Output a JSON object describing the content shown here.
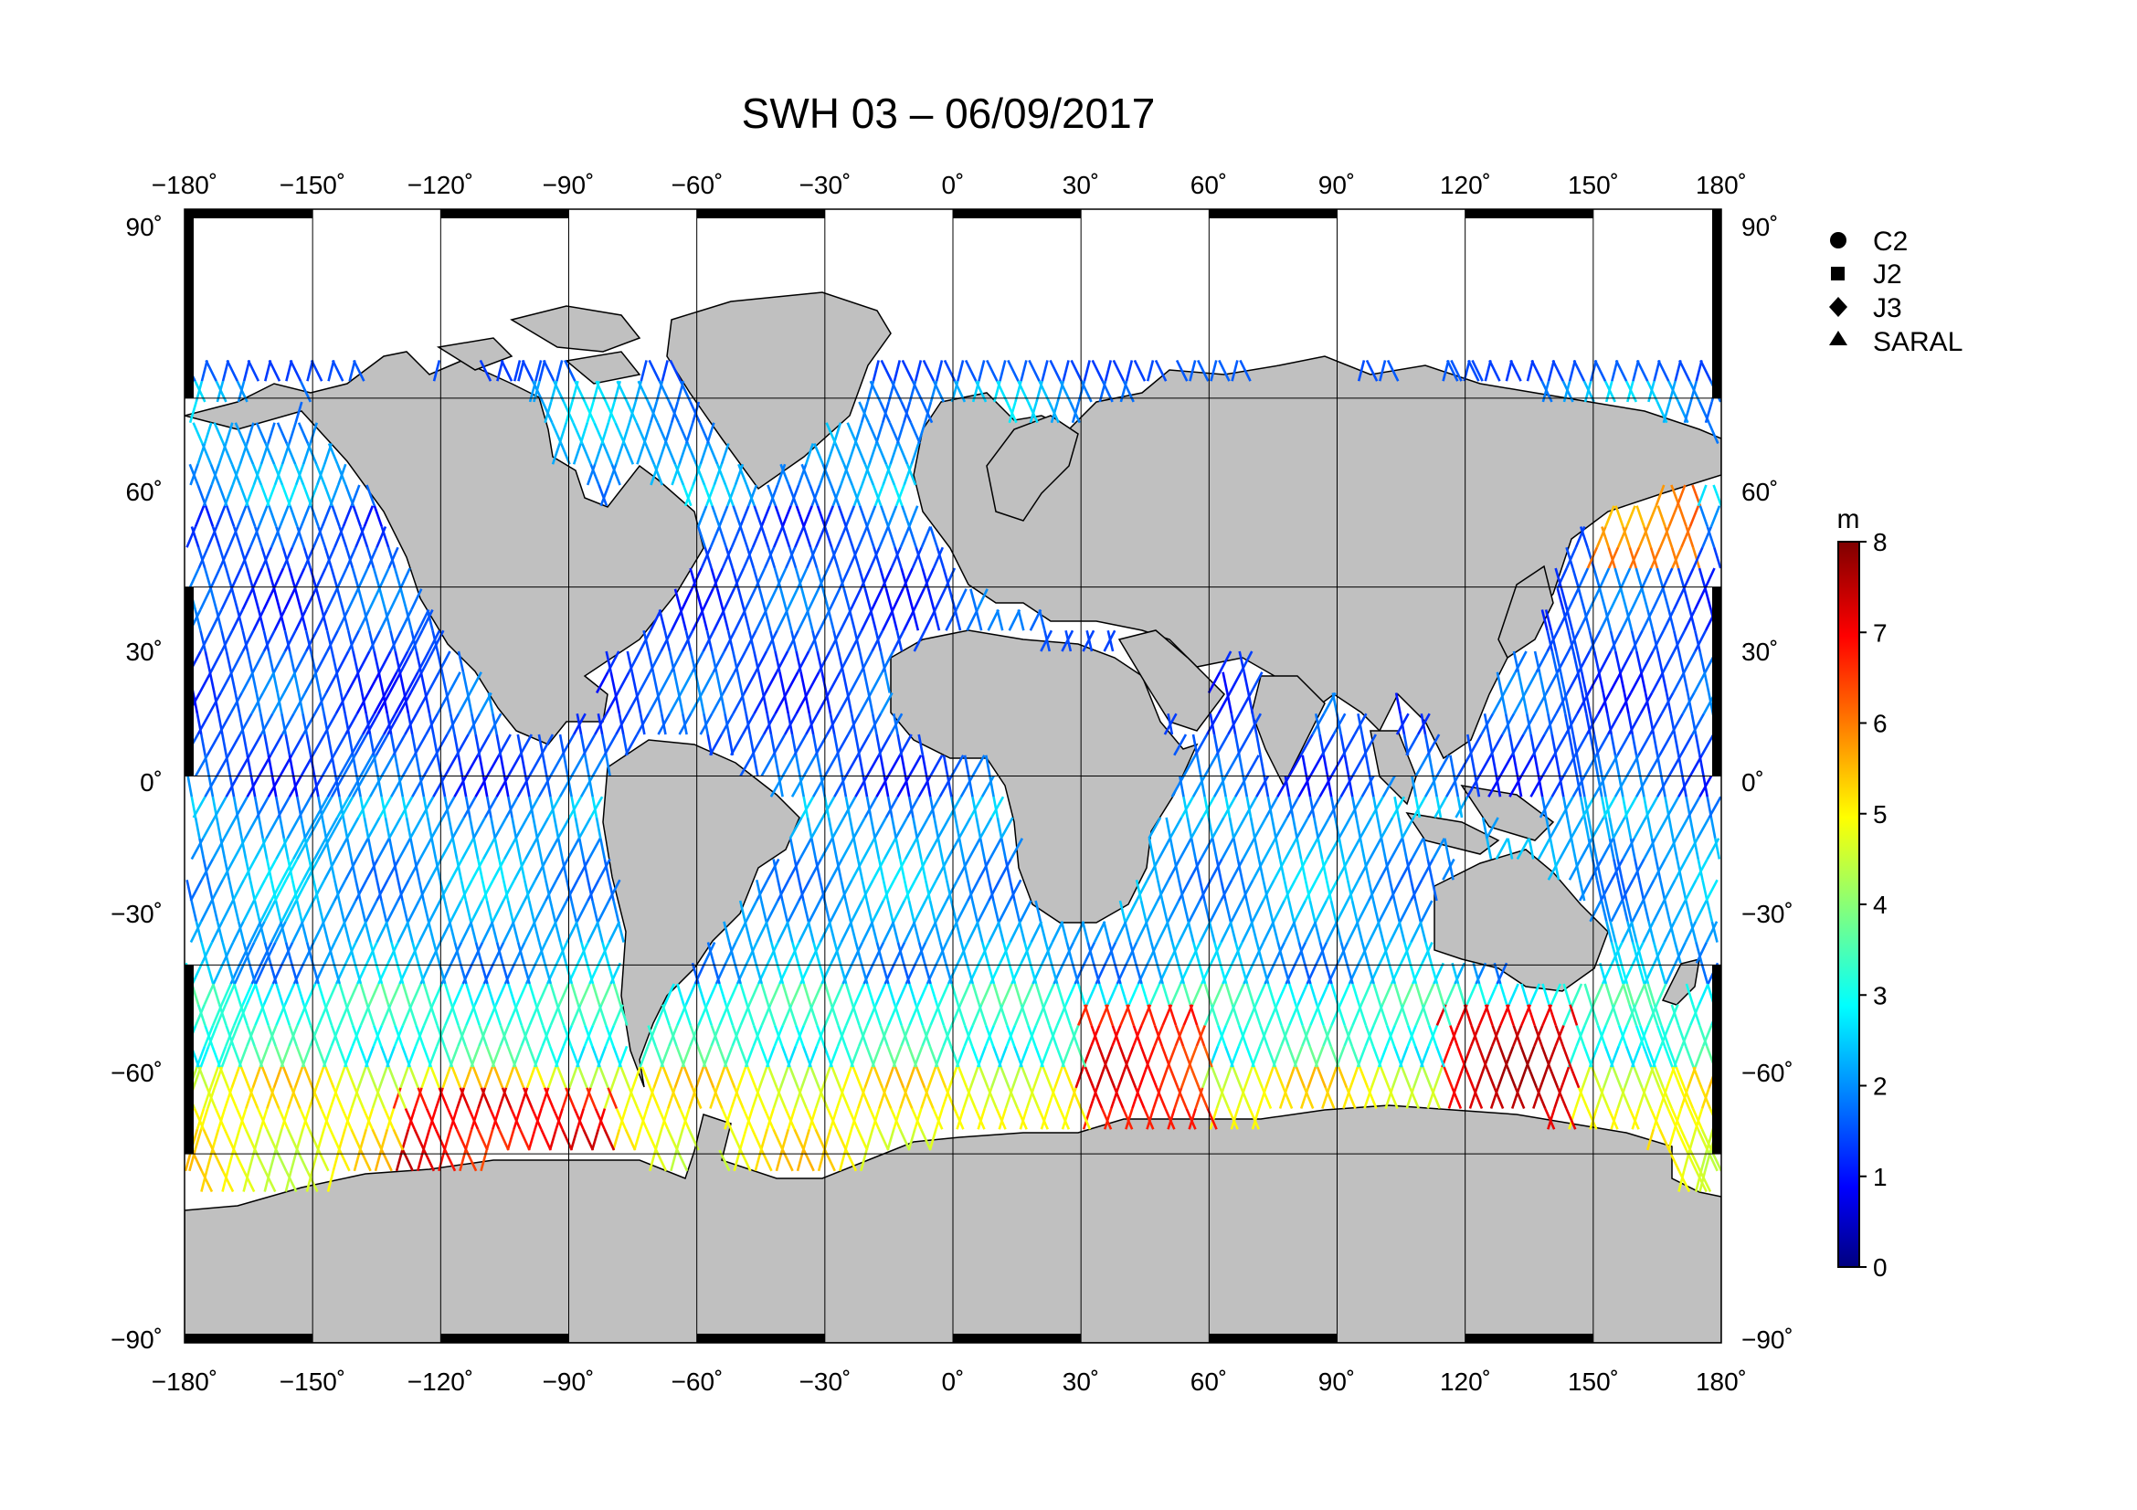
{
  "title": "SWH 03 – 06/09/2017",
  "map": {
    "projection": "equirectangular",
    "lon_range": [
      -180,
      180
    ],
    "lat_range": [
      -90,
      90
    ],
    "lon_ticks": [
      "−180˚",
      "−150˚",
      "−120˚",
      "−90˚",
      "−60˚",
      "−30˚",
      "0˚",
      "30˚",
      "60˚",
      "90˚",
      "120˚",
      "150˚",
      "180˚"
    ],
    "lat_ticks_left": [
      "90˚",
      "60˚",
      "30˚",
      "0˚",
      "−30˚",
      "−60˚",
      "−90˚"
    ],
    "lat_ticks_right": [
      "90˚",
      "60˚",
      "30˚",
      "0˚",
      "−30˚",
      "−60˚",
      "−90˚"
    ],
    "land_color": "#c0c0c0",
    "ocean_color": "#ffffff",
    "grid": true,
    "ice_edge_lat": [
      60,
      -60
    ]
  },
  "legend": {
    "items": [
      {
        "label": "C2",
        "marker": "circle"
      },
      {
        "label": "J2",
        "marker": "square"
      },
      {
        "label": "J3",
        "marker": "diamond"
      },
      {
        "label": "SARAL",
        "marker": "triangle"
      }
    ]
  },
  "colorbar": {
    "unit": "m",
    "min": 0,
    "max": 8,
    "ticks": [
      "0",
      "1",
      "2",
      "3",
      "4",
      "5",
      "6",
      "7",
      "8"
    ],
    "colormap": "jet"
  },
  "chart_data": {
    "type": "scatter",
    "title": "SWH 03 – 06/09/2017",
    "xlabel": "",
    "ylabel": "",
    "xlim": [
      -180,
      180
    ],
    "ylim": [
      -90,
      90
    ],
    "value_unit": "m",
    "value_range": [
      0,
      8
    ],
    "series": [
      {
        "name": "C2"
      },
      {
        "name": "J2"
      },
      {
        "name": "J3"
      },
      {
        "name": "SARAL"
      }
    ],
    "swh_by_latitude_band": [
      {
        "lat": [
          45,
          66
        ],
        "swh_m": 2.3
      },
      {
        "lat": [
          0,
          45
        ],
        "swh_m": 1.6
      },
      {
        "lat": [
          -30,
          0
        ],
        "swh_m": 2.3
      },
      {
        "lat": [
          -45,
          -30
        ],
        "swh_m": 3.3
      },
      {
        "lat": [
          -66,
          -45
        ],
        "swh_m": 5.0
      }
    ],
    "peak_regions": [
      {
        "lon": [
          -130,
          -80
        ],
        "lat": [
          -65,
          -48
        ],
        "swh_m": 7.0
      },
      {
        "lon": [
          30,
          60
        ],
        "lat": [
          -60,
          -35
        ],
        "swh_m": 6.8
      },
      {
        "lon": [
          115,
          145
        ],
        "lat": [
          -55,
          -35
        ],
        "swh_m": 7.2
      },
      {
        "lon": [
          150,
          175
        ],
        "lat": [
          35,
          55
        ],
        "swh_m": 6.0
      }
    ]
  }
}
